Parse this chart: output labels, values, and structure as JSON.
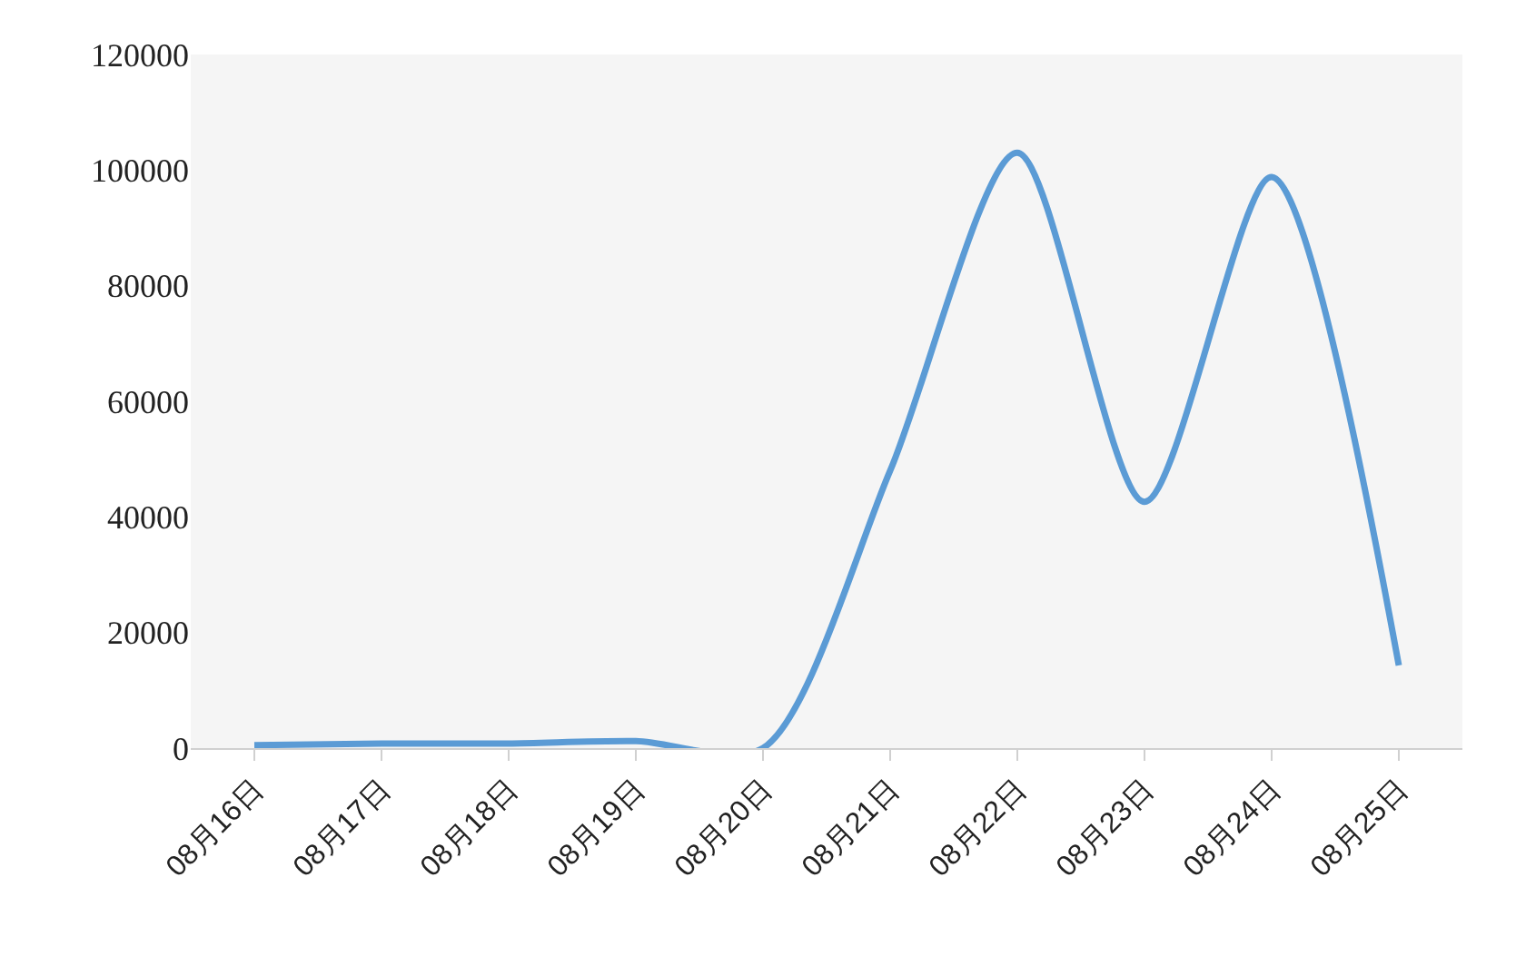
{
  "chart_data": {
    "type": "line",
    "categories": [
      "08月16日",
      "08月17日",
      "08月18日",
      "08月19日",
      "08月20日",
      "08月21日",
      "08月22日",
      "08月23日",
      "08月24日",
      "08月25日"
    ],
    "series": [
      {
        "color": "#5b9bd5",
        "values": [
          500,
          800,
          800,
          1200,
          0,
          48000,
          103000,
          42600,
          98800,
          14300
        ]
      }
    ],
    "ylim": [
      0,
      120000
    ],
    "yticks": [
      0,
      20000,
      40000,
      60000,
      80000,
      100000,
      120000
    ],
    "grid": false,
    "legend": false,
    "marker": "none",
    "line_style": "solid"
  }
}
